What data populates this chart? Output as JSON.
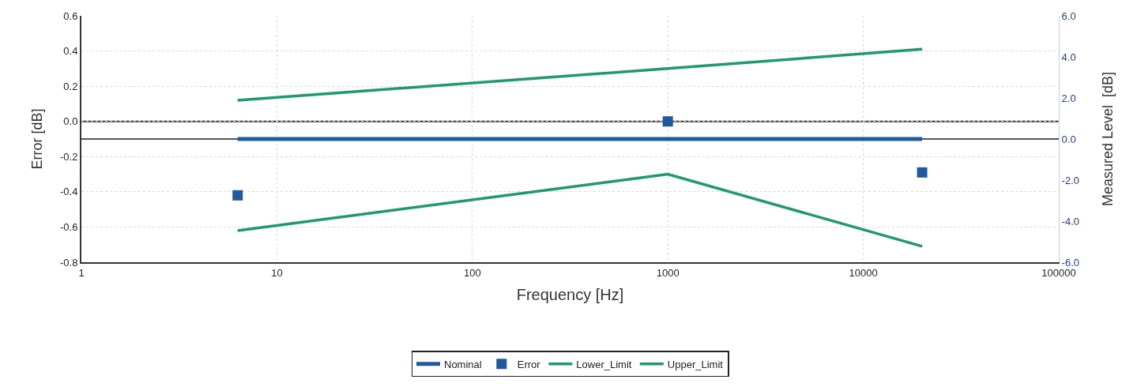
{
  "chart_data": {
    "type": "line",
    "xlabel": "Frequency [Hz]",
    "ylabel": "Error [dB]",
    "y2label": "Measured Level  [dB]",
    "log": "x",
    "grid": true,
    "legend": "bottom",
    "xlim": [
      1,
      100000
    ],
    "xticks": [
      1,
      10,
      100,
      1000,
      10000,
      100000
    ],
    "ylim": [
      -0.8,
      0.6
    ],
    "yticks": [
      -0.8,
      -0.6,
      -0.4,
      -0.2,
      {
        "value": 0,
        "label": "0.0"
      },
      0.2,
      0.4,
      0.6
    ],
    "y2lim": [
      -6,
      6
    ],
    "y2ticks": [
      {
        "value": -6,
        "label": "-6.0"
      },
      {
        "value": -4,
        "label": "-4.0"
      },
      {
        "value": -2,
        "label": "-2.0"
      },
      {
        "value": 0,
        "label": "0.0"
      },
      {
        "value": 2,
        "label": "2.0"
      },
      {
        "value": 4,
        "label": "4.0"
      },
      {
        "value": 6,
        "label": "6.0"
      }
    ],
    "ref_lines": [
      {
        "axis": "y",
        "value": 0,
        "color": "#333333"
      },
      {
        "axis": "y2",
        "value": 0,
        "color": "#555555"
      }
    ],
    "series": [
      {
        "name": "Nominal",
        "axis": "y2",
        "color": "#1f5a9e",
        "x": [
          6.3,
          1000,
          20000
        ],
        "values": [
          0,
          0,
          0
        ]
      },
      {
        "name": "Error",
        "type": "scatter",
        "marker": "square",
        "color": "#1f5a9e",
        "x": [
          6.3,
          1000,
          20000
        ],
        "values": [
          -0.42,
          0.0,
          -0.29
        ]
      },
      {
        "name": "Lower_Limit",
        "color": "#1e9a6c",
        "x": [
          6.3,
          1000,
          20000
        ],
        "values": [
          -0.62,
          -0.3,
          -0.71
        ]
      },
      {
        "name": "Upper_Limit",
        "color": "#1e9a6c",
        "x": [
          6.3,
          1000,
          20000
        ],
        "values": [
          0.12,
          0.3,
          0.41
        ]
      }
    ]
  }
}
